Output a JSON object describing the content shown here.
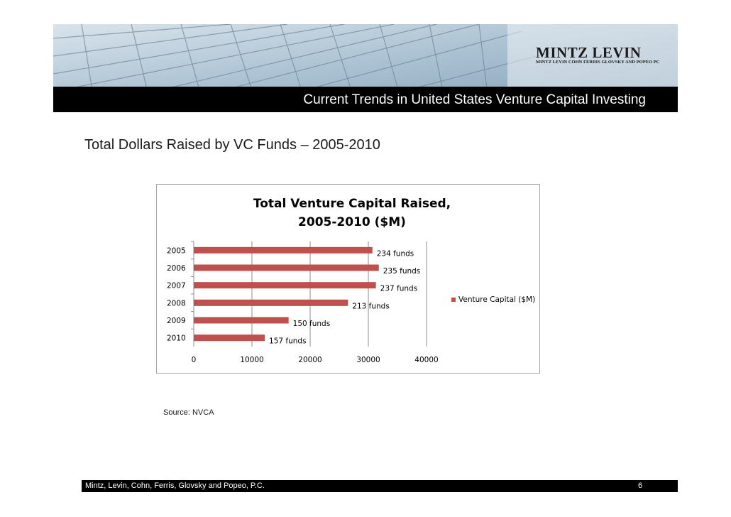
{
  "header": {
    "title": "Current Trends in United States Venture Capital Investing",
    "logo_name": "MINTZ LEVIN",
    "logo_subtitle": "MINTZ LEVIN COHN FERRIS GLOVSKY AND POPEO PC"
  },
  "slide": {
    "heading": "Total Dollars Raised by VC Funds – 2005-2010",
    "source": "Source:  NVCA"
  },
  "footer": {
    "firm": "Mintz, Levin, Cohn, Ferris, Glovsky and Popeo, P.C.",
    "page": "6"
  },
  "colors": {
    "bar": "#c0504d",
    "banner_strip": "#000000"
  },
  "chart_data": {
    "type": "bar",
    "orientation": "horizontal",
    "title_lines": [
      "Total Venture Capital Raised,",
      "2005-2010 ($M)"
    ],
    "categories": [
      "2005",
      "2006",
      "2007",
      "2008",
      "2009",
      "2010"
    ],
    "series": [
      {
        "name": "Venture Capital ($M)",
        "values": [
          30700,
          31800,
          31300,
          26500,
          16300,
          12200
        ],
        "data_labels": [
          "234 funds",
          "235 funds",
          "237 funds",
          "213 funds",
          "150 funds",
          "157 funds"
        ]
      }
    ],
    "x_ticks": [
      "0",
      "10000",
      "20000",
      "30000",
      "40000"
    ],
    "xlim": [
      0,
      40000
    ],
    "grid": "vertical major gridlines",
    "legend_position": "right"
  }
}
